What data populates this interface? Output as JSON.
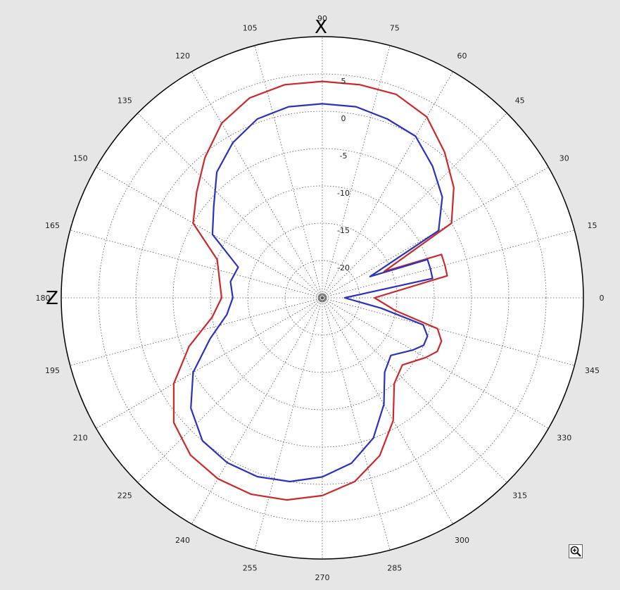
{
  "chart_data": {
    "type": "polar",
    "angle_unit": "degrees",
    "angle_tick_labels": [
      "0",
      "15",
      "30",
      "45",
      "60",
      "75",
      "90",
      "105",
      "120",
      "135",
      "150",
      "165",
      "180",
      "195",
      "210",
      "225",
      "240",
      "255",
      "270",
      "285",
      "300",
      "315",
      "330",
      "345"
    ],
    "radial_tick_labels": [
      "5",
      "0",
      "-5",
      "-10",
      "-15",
      "-20"
    ],
    "radial_ticks": [
      5,
      0,
      -5,
      -10,
      -15,
      -20
    ],
    "rlim": [
      -25,
      10
    ],
    "grid": true,
    "axis_markers": {
      "top": "X",
      "left": "Z"
    },
    "series": [
      {
        "color": "#cc2a2a",
        "points": [
          [
            0,
            -18
          ],
          [
            10,
            -8
          ],
          [
            15,
            -8
          ],
          [
            20,
            -8
          ],
          [
            23,
            -16
          ],
          [
            30,
            -5
          ],
          [
            40,
            -2
          ],
          [
            50,
            0.5
          ],
          [
            60,
            3
          ],
          [
            70,
            4
          ],
          [
            80,
            4
          ],
          [
            90,
            4
          ],
          [
            100,
            4
          ],
          [
            110,
            3.5
          ],
          [
            120,
            2
          ],
          [
            130,
            -0.5
          ],
          [
            140,
            -3
          ],
          [
            150,
            -5
          ],
          [
            160,
            -10
          ],
          [
            170,
            -11
          ],
          [
            180,
            -11.5
          ],
          [
            190,
            -10
          ],
          [
            200,
            -6
          ],
          [
            210,
            -2
          ],
          [
            220,
            1
          ],
          [
            230,
            2.5
          ],
          [
            240,
            3
          ],
          [
            250,
            3
          ],
          [
            260,
            2.5
          ],
          [
            270,
            1.5
          ],
          [
            280,
            0
          ],
          [
            290,
            -2.5
          ],
          [
            300,
            -6
          ],
          [
            310,
            -10
          ],
          [
            320,
            -11
          ],
          [
            330,
            -9
          ],
          [
            335,
            -8
          ],
          [
            340,
            -8
          ],
          [
            345,
            -9
          ],
          [
            350,
            -15
          ]
        ]
      },
      {
        "color": "#2a32c0",
        "points": [
          [
            0,
            -22
          ],
          [
            10,
            -10
          ],
          [
            15,
            -10
          ],
          [
            20,
            -10
          ],
          [
            24,
            -18
          ],
          [
            30,
            -7
          ],
          [
            40,
            -4
          ],
          [
            50,
            -2
          ],
          [
            60,
            0
          ],
          [
            70,
            0.5
          ],
          [
            80,
            1
          ],
          [
            90,
            1
          ],
          [
            100,
            1
          ],
          [
            110,
            0.5
          ],
          [
            120,
            -1
          ],
          [
            130,
            -3
          ],
          [
            140,
            -6
          ],
          [
            150,
            -8
          ],
          [
            160,
            -13
          ],
          [
            170,
            -12.5
          ],
          [
            180,
            -13
          ],
          [
            190,
            -12
          ],
          [
            200,
            -9
          ],
          [
            210,
            -5
          ],
          [
            220,
            -2
          ],
          [
            230,
            0
          ],
          [
            240,
            0.5
          ],
          [
            250,
            0.5
          ],
          [
            260,
            0
          ],
          [
            270,
            -1
          ],
          [
            280,
            -2.5
          ],
          [
            290,
            -5
          ],
          [
            300,
            -8.5
          ],
          [
            310,
            -12
          ],
          [
            320,
            -13
          ],
          [
            330,
            -11
          ],
          [
            335,
            -10
          ],
          [
            340,
            -10
          ],
          [
            345,
            -11
          ],
          [
            350,
            -17
          ]
        ]
      }
    ]
  }
}
